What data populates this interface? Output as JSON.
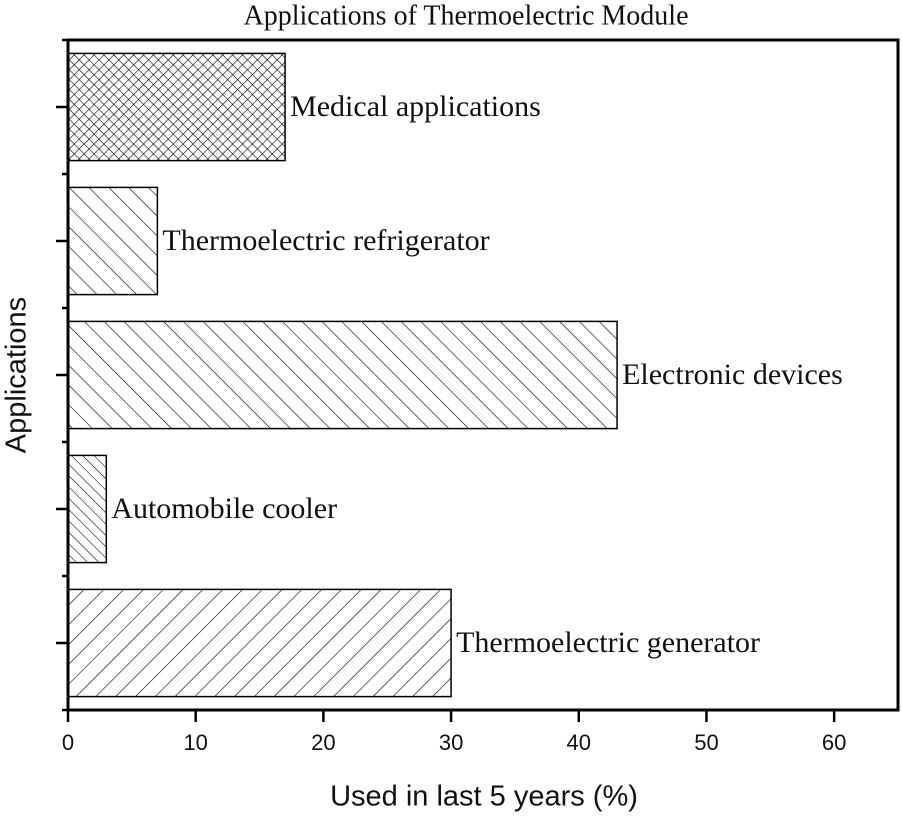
{
  "chart_data": {
    "type": "barh",
    "title": "Applications of Thermoelectric Module",
    "xlabel": "Used in last 5 years (%)",
    "ylabel": "Applications",
    "categories": [
      "Thermoelectric generator",
      "Automobile cooler",
      "Electronic devices",
      "Thermoelectric refrigerator",
      "Medical applications"
    ],
    "values": [
      30,
      3,
      43,
      7,
      17
    ],
    "patterns": [
      "slash",
      "backslash-dense",
      "backslash",
      "backslash",
      "crosshatch"
    ],
    "color": "#000000",
    "xlim": [
      0,
      65
    ],
    "xticks": [
      0,
      10,
      20,
      30,
      40,
      50,
      60
    ]
  }
}
